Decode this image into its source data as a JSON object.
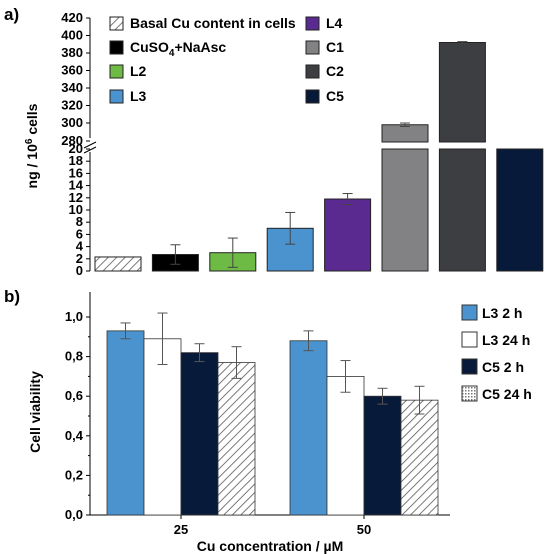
{
  "chart_data": [
    {
      "panel_label": "a)",
      "type": "bar",
      "ylabel": "ng / 10",
      "ylabel_sup": "6",
      "ylabel_tail": " cells",
      "axis_break": true,
      "ylim_lower": [
        0,
        20
      ],
      "ylim_upper": [
        290,
        420
      ],
      "yticks_lower": [
        "0",
        "2",
        "4",
        "6",
        "8",
        "10",
        "12",
        "14",
        "16",
        "18",
        "20"
      ],
      "yticks_upper": [
        "280",
        "300",
        "320",
        "340",
        "360",
        "380",
        "400",
        "420"
      ],
      "series": [
        {
          "name": "Basal Cu content in cells",
          "value": 2.3,
          "error": null,
          "color": "#ffffff",
          "pattern": "hatch"
        },
        {
          "name": "CuSO4+NaAsc",
          "value": 2.7,
          "error": 1.6,
          "color": "#000000"
        },
        {
          "name": "L2",
          "value": 3.0,
          "error": 2.4,
          "color": "#6dbb45"
        },
        {
          "name": "L3",
          "value": 7.0,
          "error": 2.6,
          "color": "#4b93cf"
        },
        {
          "name": "L4",
          "value": 11.8,
          "error": 0.9,
          "color": "#5b2a91"
        },
        {
          "name": "C1",
          "value": 298,
          "error": 2,
          "color": "#828284",
          "broken": true
        },
        {
          "name": "C2",
          "value": 392,
          "error": 1,
          "color": "#3d3e41",
          "broken": true
        },
        {
          "name": "C5",
          "value": 20,
          "error": null,
          "color": "#081a3a",
          "broken_at_lower_top": true
        }
      ],
      "legend": [
        {
          "text": "Basal Cu content in cells",
          "color": "#ffffff",
          "pattern": "hatch"
        },
        {
          "text": "CuSO",
          "sub": "4",
          "tail": "+NaAsc",
          "color": "#000000"
        },
        {
          "text": "L2",
          "color": "#6dbb45"
        },
        {
          "text": "L3",
          "color": "#4b93cf"
        },
        {
          "text": "L4",
          "color": "#5b2a91"
        },
        {
          "text": "C1",
          "color": "#828284"
        },
        {
          "text": "C2",
          "color": "#3d3e41"
        },
        {
          "text": "C5",
          "color": "#081a3a"
        }
      ]
    },
    {
      "panel_label": "b)",
      "type": "bar",
      "xlabel": "Cu concentration / µM",
      "ylabel": "Cell viability",
      "ylim": [
        0,
        1.1
      ],
      "yticks": [
        "0,0",
        "0,2",
        "0,4",
        "0,6",
        "0,8",
        "1,0"
      ],
      "categories": [
        "25",
        "50"
      ],
      "series": [
        {
          "name": "L3 2 h",
          "values": [
            0.93,
            0.88
          ],
          "errors": [
            0.04,
            0.05
          ],
          "color": "#4b93cf"
        },
        {
          "name": "L3 24 h",
          "values": [
            0.89,
            0.7
          ],
          "errors": [
            0.13,
            0.08
          ],
          "color": "#ffffff"
        },
        {
          "name": "C5 2 h",
          "values": [
            0.82,
            0.6
          ],
          "errors": [
            0.045,
            0.04
          ],
          "color": "#081a3a"
        },
        {
          "name": "C5 24 h",
          "values": [
            0.77,
            0.58
          ],
          "errors": [
            0.08,
            0.07
          ],
          "color": "#ffffff",
          "pattern": "hatch"
        }
      ]
    }
  ]
}
